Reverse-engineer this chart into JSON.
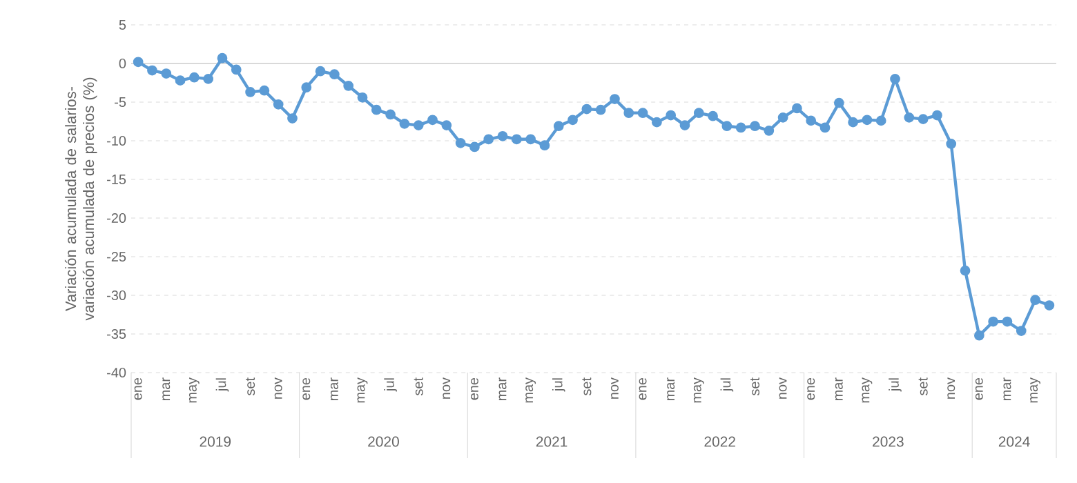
{
  "chart_data": {
    "type": "line",
    "ylabel": "Variación acumulada de salarios-variación acumulada de precios (%)",
    "categories": [
      "ene",
      null,
      "mar",
      null,
      "may",
      null,
      "jul",
      null,
      "set",
      null,
      "nov",
      null,
      "ene",
      null,
      "mar",
      null,
      "may",
      null,
      "jul",
      null,
      "set",
      null,
      "nov",
      null,
      "ene",
      null,
      "mar",
      null,
      "may",
      null,
      "jul",
      null,
      "set",
      null,
      "nov",
      null,
      "ene",
      null,
      "mar",
      null,
      "may",
      null,
      "jul",
      null,
      "set",
      null,
      "nov",
      null,
      "ene",
      null,
      "mar",
      null,
      "may",
      null,
      "jul",
      null,
      "set",
      null,
      "nov",
      null,
      "ene",
      null,
      "mar",
      null,
      "may",
      null
    ],
    "series": [
      {
        "color": "#5b9bd5",
        "values": [
          0.2,
          -0.9,
          -1.3,
          -2.2,
          -1.8,
          -2.0,
          0.7,
          -0.8,
          -3.7,
          -3.5,
          -5.3,
          -7.1,
          -3.1,
          -1.0,
          -1.4,
          -2.9,
          -4.4,
          -6.0,
          -6.6,
          -7.8,
          -8.0,
          -7.3,
          -8.0,
          -10.3,
          -10.8,
          -9.8,
          -9.4,
          -9.8,
          -9.8,
          -10.6,
          -8.1,
          -7.3,
          -5.9,
          -6.0,
          -4.6,
          -6.4,
          -6.4,
          -7.6,
          -6.7,
          -8.0,
          -6.4,
          -6.8,
          -8.1,
          -8.3,
          -8.1,
          -8.7,
          -7.0,
          -5.8,
          -7.4,
          -8.3,
          -5.1,
          -7.6,
          -7.3,
          -7.4,
          -2.0,
          -7.0,
          -7.2,
          -6.7,
          -10.4,
          -26.8,
          -35.2,
          -33.4,
          -33.4,
          -34.6,
          -30.6,
          -31.3
        ]
      }
    ],
    "annotations": [
      "2019",
      "2020",
      "2021",
      "2022",
      "2023",
      "2024"
    ],
    "ylim": [
      -40,
      5
    ],
    "yticks": [
      -40,
      -35,
      -30,
      -25,
      -20,
      -15,
      -10,
      -5,
      0,
      5
    ],
    "ref_lines": [
      {
        "axis": "y",
        "value": 0,
        "color": "#d9d9d9"
      }
    ],
    "grid": "y",
    "marker": "circle",
    "line_style": "solid"
  }
}
